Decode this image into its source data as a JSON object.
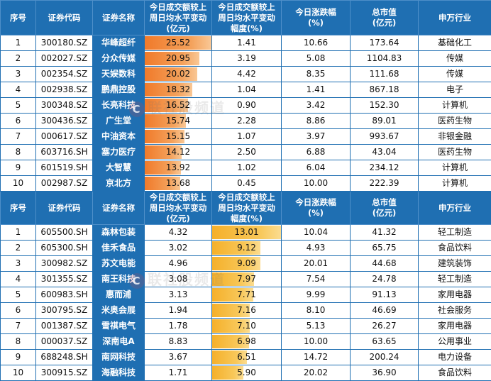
{
  "headers": [
    "序号",
    "证券代码",
    "证券名称",
    "今日成交额较上周日均水平变动(亿元)",
    "今日成交额较上周日均水平变动幅度(%)",
    "今日涨跌幅(%)",
    "总市值(亿元)",
    "申万行业"
  ],
  "header_lines": {
    "h1": "序号",
    "h2": "证券代码",
    "h3": "证券名称",
    "h4a": "今日成交额较上",
    "h4b": "周日均水平变动",
    "h4c": "(亿元)",
    "h5a": "今日成交额较上",
    "h5b": "周日均水平变动",
    "h5c": "幅度(%)",
    "h6a": "今日涨跌幅",
    "h6b": "(%)",
    "h7a": "总市值",
    "h7b": "(亿元)",
    "h8": "申万行业"
  },
  "watermark": "联社股频道",
  "table1": {
    "bar_max": 25.52,
    "rows": [
      {
        "no": "1",
        "code": "300180.SZ",
        "name": "华峰超纤",
        "amount": "25.52",
        "pct": "1.41",
        "chg": "10.66",
        "cap": "173.64",
        "ind": "基础化工"
      },
      {
        "no": "2",
        "code": "002027.SZ",
        "name": "分众传媒",
        "amount": "20.95",
        "pct": "3.19",
        "chg": "5.08",
        "cap": "1104.83",
        "ind": "传媒"
      },
      {
        "no": "3",
        "code": "002354.SZ",
        "name": "天娱数科",
        "amount": "20.02",
        "pct": "4.42",
        "chg": "8.35",
        "cap": "111.68",
        "ind": "传媒"
      },
      {
        "no": "4",
        "code": "002938.SZ",
        "name": "鹏鼎控股",
        "amount": "18.32",
        "pct": "1.04",
        "chg": "1.41",
        "cap": "867.18",
        "ind": "电子"
      },
      {
        "no": "5",
        "code": "300348.SZ",
        "name": "长亮科技",
        "amount": "16.52",
        "pct": "0.90",
        "chg": "3.42",
        "cap": "152.30",
        "ind": "计算机"
      },
      {
        "no": "6",
        "code": "300436.SZ",
        "name": "广生堂",
        "amount": "15.74",
        "pct": "2.28",
        "chg": "8.86",
        "cap": "89.01",
        "ind": "医药生物"
      },
      {
        "no": "7",
        "code": "000617.SZ",
        "name": "中油资本",
        "amount": "15.15",
        "pct": "1.07",
        "chg": "3.97",
        "cap": "993.67",
        "ind": "非银金融"
      },
      {
        "no": "8",
        "code": "603716.SH",
        "name": "塞力医疗",
        "amount": "14.12",
        "pct": "2.50",
        "chg": "6.88",
        "cap": "43.04",
        "ind": "医药生物"
      },
      {
        "no": "9",
        "code": "601519.SH",
        "name": "大智慧",
        "amount": "13.92",
        "pct": "1.02",
        "chg": "6.04",
        "cap": "234.12",
        "ind": "计算机"
      },
      {
        "no": "10",
        "code": "002987.SZ",
        "name": "京北方",
        "amount": "13.68",
        "pct": "0.45",
        "chg": "10.00",
        "cap": "222.39",
        "ind": "计算机"
      }
    ]
  },
  "table2": {
    "bar_max": 13.01,
    "rows": [
      {
        "no": "1",
        "code": "605500.SH",
        "name": "森林包装",
        "amount": "4.32",
        "pct": "13.01",
        "chg": "10.04",
        "cap": "41.32",
        "ind": "轻工制造"
      },
      {
        "no": "2",
        "code": "605300.SH",
        "name": "佳禾食品",
        "amount": "3.02",
        "pct": "9.12",
        "chg": "4.93",
        "cap": "65.75",
        "ind": "食品饮料"
      },
      {
        "no": "3",
        "code": "300982.SZ",
        "name": "苏文电能",
        "amount": "4.96",
        "pct": "9.09",
        "chg": "20.01",
        "cap": "44.68",
        "ind": "建筑装饰"
      },
      {
        "no": "4",
        "code": "301355.SZ",
        "name": "南王科技",
        "amount": "3.08",
        "pct": "7.97",
        "chg": "7.54",
        "cap": "24.78",
        "ind": "轻工制造"
      },
      {
        "no": "5",
        "code": "600983.SH",
        "name": "惠而浦",
        "amount": "3.13",
        "pct": "7.71",
        "chg": "9.99",
        "cap": "91.13",
        "ind": "家用电器"
      },
      {
        "no": "6",
        "code": "300795.SZ",
        "name": "米奥会展",
        "amount": "1.94",
        "pct": "7.16",
        "chg": "8.10",
        "cap": "46.69",
        "ind": "社会服务"
      },
      {
        "no": "7",
        "code": "001387.SZ",
        "name": "雪祺电气",
        "amount": "1.78",
        "pct": "7.10",
        "chg": "5.13",
        "cap": "26.27",
        "ind": "家用电器"
      },
      {
        "no": "8",
        "code": "000037.SZ",
        "name": "深南电A",
        "amount": "8.83",
        "pct": "6.98",
        "chg": "10.00",
        "cap": "63.65",
        "ind": "公用事业"
      },
      {
        "no": "9",
        "code": "688248.SH",
        "name": "南网科技",
        "amount": "3.67",
        "pct": "6.51",
        "chg": "14.72",
        "cap": "200.24",
        "ind": "电力设备"
      },
      {
        "no": "10",
        "code": "300915.SZ",
        "name": "海融科技",
        "amount": "1.71",
        "pct": "5.90",
        "chg": "20.02",
        "cap": "36.90",
        "ind": "食品饮料"
      }
    ]
  }
}
